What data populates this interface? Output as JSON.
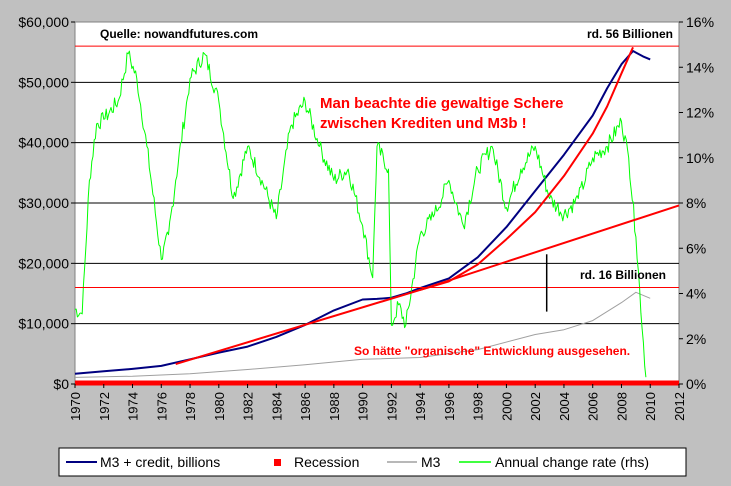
{
  "chart_data": {
    "type": "line",
    "title": "",
    "source_label": "Quelle: nowandfutures.com",
    "x_range": [
      1970,
      2012
    ],
    "x_ticks": [
      "1970",
      "1972",
      "1974",
      "1976",
      "1978",
      "1980",
      "1982",
      "1984",
      "1986",
      "1988",
      "1990",
      "1992",
      "1994",
      "1996",
      "1998",
      "2000",
      "2002",
      "2004",
      "2006",
      "2008",
      "2010",
      "2012"
    ],
    "y_left": {
      "range": [
        0,
        60000
      ],
      "ticks": [
        "$0",
        "$10,000",
        "$20,000",
        "$30,000",
        "$40,000",
        "$50,000",
        "$60,000"
      ]
    },
    "y_right": {
      "range": [
        0,
        16
      ],
      "ticks": [
        "0%",
        "2%",
        "4%",
        "6%",
        "8%",
        "10%",
        "12%",
        "14%",
        "16%"
      ]
    },
    "series": [
      {
        "name": "M3 + credit, billions",
        "color": "#000080",
        "axis": "left",
        "points": [
          [
            1970,
            1700
          ],
          [
            1972,
            2100
          ],
          [
            1974,
            2500
          ],
          [
            1976,
            3000
          ],
          [
            1978,
            4100
          ],
          [
            1980,
            5200
          ],
          [
            1982,
            6200
          ],
          [
            1984,
            7800
          ],
          [
            1986,
            9800
          ],
          [
            1988,
            12200
          ],
          [
            1990,
            14000
          ],
          [
            1991,
            14100
          ],
          [
            1992,
            14300
          ],
          [
            1993,
            15000
          ],
          [
            1994,
            15900
          ],
          [
            1996,
            17500
          ],
          [
            1998,
            21000
          ],
          [
            2000,
            26000
          ],
          [
            2002,
            32000
          ],
          [
            2004,
            38000
          ],
          [
            2006,
            44500
          ],
          [
            2007,
            49000
          ],
          [
            2008,
            53000
          ],
          [
            2008.8,
            55200
          ],
          [
            2009.5,
            54300
          ],
          [
            2010,
            53800
          ]
        ]
      },
      {
        "name": "M3",
        "color": "#a0a0a0",
        "axis": "left",
        "points": [
          [
            1970,
            1100
          ],
          [
            1974,
            1300
          ],
          [
            1978,
            1700
          ],
          [
            1982,
            2400
          ],
          [
            1986,
            3200
          ],
          [
            1990,
            4100
          ],
          [
            1994,
            4400
          ],
          [
            1998,
            5700
          ],
          [
            2002,
            8200
          ],
          [
            2004,
            9000
          ],
          [
            2006,
            10500
          ],
          [
            2008,
            13500
          ],
          [
            2009,
            15200
          ],
          [
            2010,
            14200
          ]
        ]
      },
      {
        "name": "Annual change rate (rhs)",
        "color": "#00ff00",
        "axis": "right",
        "points": [
          [
            1970,
            3.3
          ],
          [
            1970.5,
            3.1
          ],
          [
            1971,
            9
          ],
          [
            1971.5,
            11.5
          ],
          [
            1972,
            11.7
          ],
          [
            1973,
            12.5
          ],
          [
            1973.7,
            14.6
          ],
          [
            1974.3,
            13.5
          ],
          [
            1975,
            10.5
          ],
          [
            1976,
            5.5
          ],
          [
            1976.5,
            6.6
          ],
          [
            1977,
            9
          ],
          [
            1978,
            13.5
          ],
          [
            1979,
            14.6
          ],
          [
            1980,
            12.5
          ],
          [
            1981,
            8.2
          ],
          [
            1982,
            10.5
          ],
          [
            1983,
            9
          ],
          [
            1984,
            7.3
          ],
          [
            1985,
            11.4
          ],
          [
            1986,
            12.5
          ],
          [
            1987,
            10.5
          ],
          [
            1988,
            9
          ],
          [
            1989,
            9.5
          ],
          [
            1990,
            7
          ],
          [
            1990.7,
            4.7
          ],
          [
            1991,
            10.5
          ],
          [
            1991.8,
            9.5
          ],
          [
            1992,
            2.6
          ],
          [
            1992.5,
            3.5
          ],
          [
            1993,
            2.6
          ],
          [
            1994,
            6.6
          ],
          [
            1995,
            7.5
          ],
          [
            1996,
            9
          ],
          [
            1997,
            7
          ],
          [
            1998,
            9.5
          ],
          [
            1999,
            10.5
          ],
          [
            2000,
            7.8
          ],
          [
            2001,
            9.5
          ],
          [
            2002,
            10.5
          ],
          [
            2003,
            8.2
          ],
          [
            2004,
            7.5
          ],
          [
            2005,
            8.2
          ],
          [
            2006,
            10
          ],
          [
            2007,
            10.5
          ],
          [
            2008,
            11.6
          ],
          [
            2008.5,
            10
          ],
          [
            2009,
            6.5
          ],
          [
            2009.7,
            0.3
          ]
        ]
      },
      {
        "name": "Trend",
        "color": "#ff0000",
        "axis": "left",
        "points": [
          [
            1977,
            3300
          ],
          [
            1994,
            15600
          ],
          [
            2012,
            29600
          ]
        ]
      },
      {
        "name": "Exponential fit",
        "color": "#ff0000",
        "axis": "left",
        "points": [
          [
            1994,
            15600
          ],
          [
            1996,
            17000
          ],
          [
            1998,
            19800
          ],
          [
            2000,
            24000
          ],
          [
            2002,
            28500
          ],
          [
            2004,
            34500
          ],
          [
            2006,
            41500
          ],
          [
            2007,
            46000
          ],
          [
            2008,
            51500
          ],
          [
            2008.8,
            55800
          ]
        ]
      }
    ],
    "reference_lines": [
      {
        "label": "rd. 56 Billionen",
        "value": 56000,
        "color": "#ff0000"
      },
      {
        "label": "rd. 16 Billionen",
        "value": 16000,
        "color": "#ff0000"
      }
    ],
    "recession_band": {
      "name": "Recession",
      "color": "#ff0000",
      "axis_value": 0
    },
    "annotations": [
      {
        "text": "Man beachte die gewaltige Schere",
        "color": "#ff0000"
      },
      {
        "text": "zwischen Krediten und M3b !",
        "color": "#ff0000"
      },
      {
        "text": "So hätte \"organische\" Entwicklung ausgesehen.",
        "color": "#ff0000"
      }
    ],
    "gap_marker_year": 2002.8,
    "legend_position": "bottom",
    "legend": [
      {
        "label": "M3 + credit, billions",
        "color": "#000080",
        "kind": "line"
      },
      {
        "label": "Recession",
        "color": "#ff0000",
        "kind": "square"
      },
      {
        "label": "M3",
        "color": "#a0a0a0",
        "kind": "line"
      },
      {
        "label": "Annual change rate (rhs)",
        "color": "#00ff00",
        "kind": "line"
      }
    ]
  }
}
